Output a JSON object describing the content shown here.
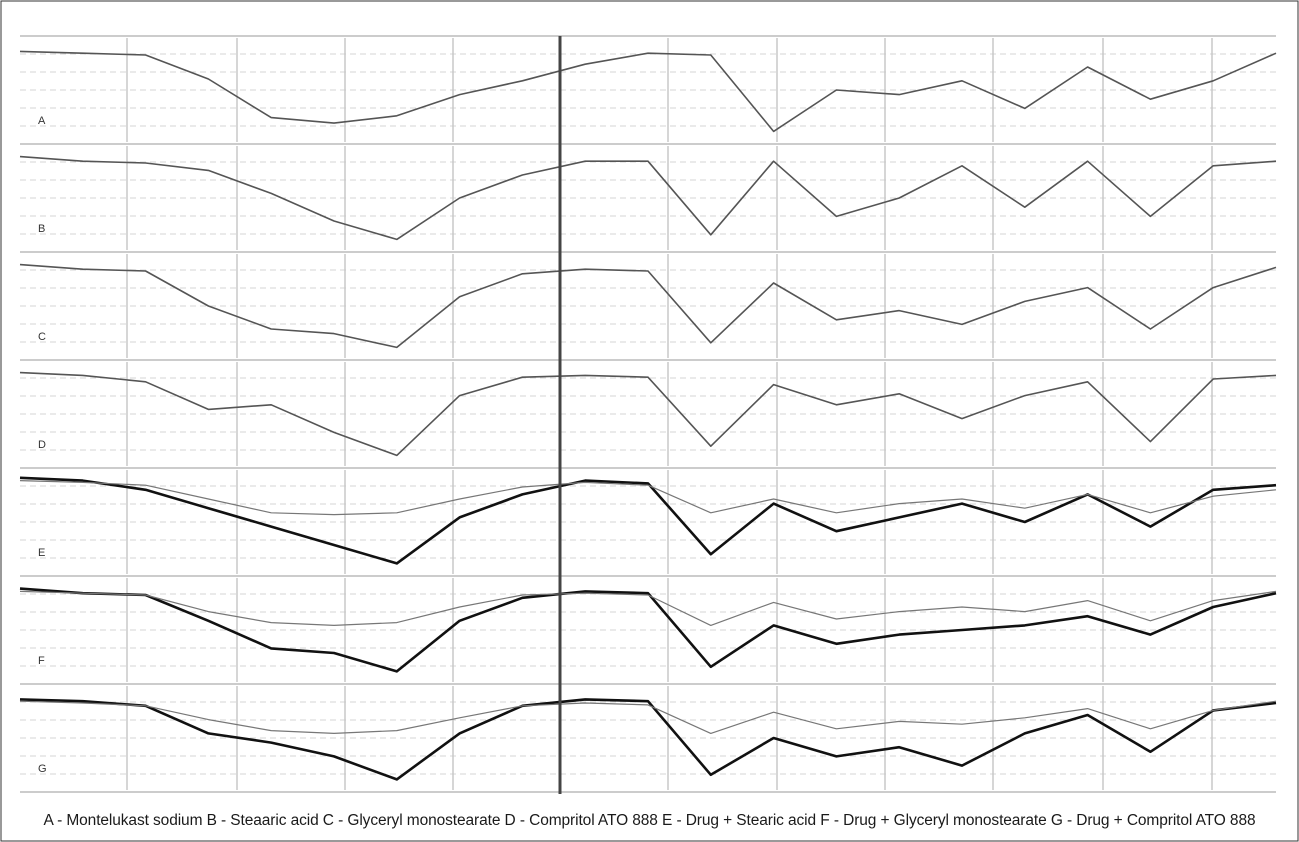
{
  "caption": "A - Montelukast sodium B - Steaaric acid C - Glyceryl monostearate D - Compritol ATO 888 E - Drug + Stearic acid F - Drug + Glyceryl monostearate G - Drug + Compritol ATO 888",
  "chart_data": {
    "type": "line",
    "title": "",
    "xlabel": "",
    "ylabel": "",
    "grid": true,
    "x_axis_split": "left section (high wavenumber region) and right section (fingerprint region), separated by a heavy vertical line",
    "colors": {
      "single_trace": "#555555",
      "reference_trace": "#777777",
      "drug_overlay_trace": "#111111",
      "grid_vertical": "#c8c8c8",
      "grid_horizontal": "#d4d4d4"
    },
    "panels": [
      {
        "label": "A",
        "name": "Montelukast sodium",
        "series": [
          {
            "role": "single",
            "x": [
              0,
              0.05,
              0.1,
              0.15,
              0.2,
              0.25,
              0.3,
              0.35,
              0.4,
              0.45,
              0.5,
              0.55,
              0.6,
              0.65,
              0.7,
              0.75,
              0.8,
              0.85,
              0.9,
              0.95,
              1
            ],
            "y": [
              0.92,
              0.9,
              0.88,
              0.62,
              0.2,
              0.14,
              0.22,
              0.45,
              0.6,
              0.78,
              0.9,
              0.88,
              0.05,
              0.5,
              0.45,
              0.6,
              0.3,
              0.75,
              0.4,
              0.6,
              0.9
            ]
          }
        ]
      },
      {
        "label": "B",
        "name": "Stearic acid",
        "series": [
          {
            "role": "single",
            "x": [
              0,
              0.05,
              0.1,
              0.15,
              0.2,
              0.25,
              0.3,
              0.35,
              0.4,
              0.45,
              0.5,
              0.55,
              0.6,
              0.65,
              0.7,
              0.75,
              0.8,
              0.85,
              0.9,
              0.95,
              1
            ],
            "y": [
              0.95,
              0.9,
              0.88,
              0.8,
              0.55,
              0.25,
              0.05,
              0.5,
              0.75,
              0.9,
              0.9,
              0.1,
              0.9,
              0.3,
              0.5,
              0.85,
              0.4,
              0.9,
              0.3,
              0.85,
              0.9
            ]
          }
        ]
      },
      {
        "label": "C",
        "name": "Glyceryl monostearate",
        "series": [
          {
            "role": "single",
            "x": [
              0,
              0.05,
              0.1,
              0.15,
              0.2,
              0.25,
              0.3,
              0.35,
              0.4,
              0.45,
              0.5,
              0.55,
              0.6,
              0.65,
              0.7,
              0.75,
              0.8,
              0.85,
              0.9,
              0.95,
              1
            ],
            "y": [
              0.95,
              0.9,
              0.88,
              0.5,
              0.25,
              0.2,
              0.05,
              0.6,
              0.85,
              0.9,
              0.88,
              0.1,
              0.75,
              0.35,
              0.45,
              0.3,
              0.55,
              0.7,
              0.25,
              0.7,
              0.92
            ]
          }
        ]
      },
      {
        "label": "D",
        "name": "Compritol ATO 888",
        "series": [
          {
            "role": "single",
            "x": [
              0,
              0.05,
              0.1,
              0.15,
              0.2,
              0.25,
              0.3,
              0.35,
              0.4,
              0.45,
              0.5,
              0.55,
              0.6,
              0.65,
              0.7,
              0.75,
              0.8,
              0.85,
              0.9,
              0.95,
              1
            ],
            "y": [
              0.95,
              0.92,
              0.85,
              0.55,
              0.6,
              0.3,
              0.05,
              0.7,
              0.9,
              0.92,
              0.9,
              0.15,
              0.82,
              0.6,
              0.72,
              0.45,
              0.7,
              0.85,
              0.2,
              0.88,
              0.92
            ]
          }
        ]
      },
      {
        "label": "E",
        "name": "Drug + Stearic acid",
        "series": [
          {
            "role": "overlay_drug",
            "x": [
              0,
              0.05,
              0.1,
              0.15,
              0.2,
              0.25,
              0.3,
              0.35,
              0.4,
              0.45,
              0.5,
              0.55,
              0.6,
              0.65,
              0.7,
              0.75,
              0.8,
              0.85,
              0.9,
              0.95,
              1
            ],
            "y": [
              0.98,
              0.95,
              0.85,
              0.65,
              0.45,
              0.25,
              0.05,
              0.55,
              0.8,
              0.95,
              0.92,
              0.15,
              0.7,
              0.4,
              0.55,
              0.7,
              0.5,
              0.8,
              0.45,
              0.85,
              0.9
            ]
          },
          {
            "role": "overlay_reference",
            "x": [
              0,
              0.05,
              0.1,
              0.15,
              0.2,
              0.25,
              0.3,
              0.35,
              0.4,
              0.45,
              0.5,
              0.55,
              0.6,
              0.65,
              0.7,
              0.75,
              0.8,
              0.85,
              0.9,
              0.95,
              1
            ],
            "y": [
              0.95,
              0.93,
              0.9,
              0.75,
              0.6,
              0.58,
              0.6,
              0.75,
              0.88,
              0.93,
              0.9,
              0.6,
              0.75,
              0.6,
              0.7,
              0.75,
              0.65,
              0.8,
              0.6,
              0.78,
              0.85
            ]
          }
        ]
      },
      {
        "label": "F",
        "name": "Drug + Glyceryl monostearate",
        "series": [
          {
            "role": "overlay_drug",
            "x": [
              0,
              0.05,
              0.1,
              0.15,
              0.2,
              0.25,
              0.3,
              0.35,
              0.4,
              0.45,
              0.5,
              0.55,
              0.6,
              0.65,
              0.7,
              0.75,
              0.8,
              0.85,
              0.9,
              0.95,
              1
            ],
            "y": [
              0.95,
              0.9,
              0.88,
              0.6,
              0.3,
              0.25,
              0.05,
              0.6,
              0.85,
              0.92,
              0.9,
              0.1,
              0.55,
              0.35,
              0.45,
              0.5,
              0.55,
              0.65,
              0.45,
              0.75,
              0.9
            ]
          },
          {
            "role": "overlay_reference",
            "x": [
              0,
              0.05,
              0.1,
              0.15,
              0.2,
              0.25,
              0.3,
              0.35,
              0.4,
              0.45,
              0.5,
              0.55,
              0.6,
              0.65,
              0.7,
              0.75,
              0.8,
              0.85,
              0.9,
              0.95,
              1
            ],
            "y": [
              0.92,
              0.9,
              0.88,
              0.7,
              0.58,
              0.55,
              0.58,
              0.75,
              0.88,
              0.9,
              0.88,
              0.55,
              0.8,
              0.62,
              0.7,
              0.75,
              0.7,
              0.82,
              0.6,
              0.82,
              0.92
            ]
          }
        ]
      },
      {
        "label": "G",
        "name": "Drug + Compritol ATO 888",
        "series": [
          {
            "role": "overlay_drug",
            "x": [
              0,
              0.05,
              0.1,
              0.15,
              0.2,
              0.25,
              0.3,
              0.35,
              0.4,
              0.45,
              0.5,
              0.55,
              0.6,
              0.65,
              0.7,
              0.75,
              0.8,
              0.85,
              0.9,
              0.95,
              1
            ],
            "y": [
              0.92,
              0.9,
              0.85,
              0.55,
              0.45,
              0.3,
              0.05,
              0.55,
              0.85,
              0.92,
              0.9,
              0.1,
              0.5,
              0.3,
              0.4,
              0.2,
              0.55,
              0.75,
              0.35,
              0.8,
              0.88
            ]
          },
          {
            "role": "overlay_reference",
            "x": [
              0,
              0.05,
              0.1,
              0.15,
              0.2,
              0.25,
              0.3,
              0.35,
              0.4,
              0.45,
              0.5,
              0.55,
              0.6,
              0.65,
              0.7,
              0.75,
              0.8,
              0.85,
              0.9,
              0.95,
              1
            ],
            "y": [
              0.9,
              0.88,
              0.85,
              0.7,
              0.58,
              0.55,
              0.58,
              0.72,
              0.85,
              0.88,
              0.86,
              0.55,
              0.78,
              0.6,
              0.68,
              0.65,
              0.72,
              0.82,
              0.6,
              0.8,
              0.9
            ]
          }
        ]
      }
    ]
  }
}
